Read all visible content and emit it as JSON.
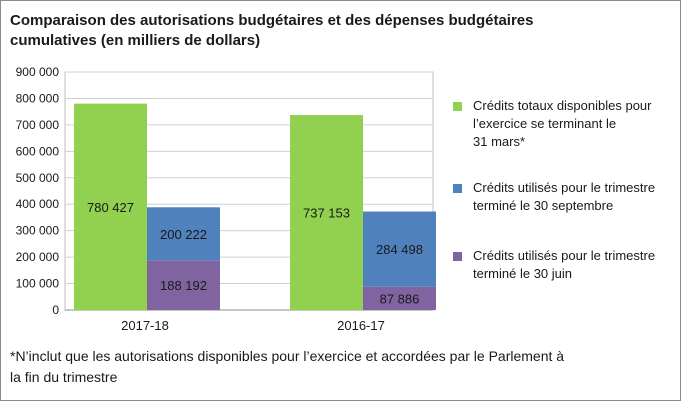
{
  "chart_data": {
    "type": "bar",
    "title_line1": "Comparaison des autorisations budgétaires et des dépenses budgétaires",
    "title_line2": "cumulatives (en milliers de dollars)",
    "categories": [
      "2017-18",
      "2016-17"
    ],
    "ylim": [
      0,
      900000
    ],
    "yticks": [
      "0",
      "100 000",
      "200 000",
      "300 000",
      "400 000",
      "500 000",
      "600 000",
      "700 000",
      "800 000",
      "900 000"
    ],
    "grid": true,
    "legend_position": "right",
    "series": [
      {
        "name_lines": [
          "Crédits totaux disponibles pour",
          "l’exercice se terminant le",
          "31 mars*"
        ],
        "color": "#92d050",
        "values": [
          780427,
          737153
        ],
        "labels": [
          "780 427",
          "737 153"
        ]
      },
      {
        "name_lines": [
          "Crédits utilisés pour le trimestre",
          "terminé le 30 juin"
        ],
        "color": "#8064a2",
        "values": [
          188192,
          87886
        ],
        "labels": [
          "188 192",
          "87 886"
        ]
      },
      {
        "name_lines": [
          "Crédits utilisés pour le trimestre",
          "terminé le 30 septembre"
        ],
        "color": "#4f81bd",
        "values": [
          200222,
          284498
        ],
        "labels": [
          "200 222",
          "284 498"
        ]
      }
    ],
    "footnote_line1": "*N’inclut que les autorisations disponibles pour l’exercice et accordées par le Parlement à",
    "footnote_line2": "la fin du trimestre"
  }
}
